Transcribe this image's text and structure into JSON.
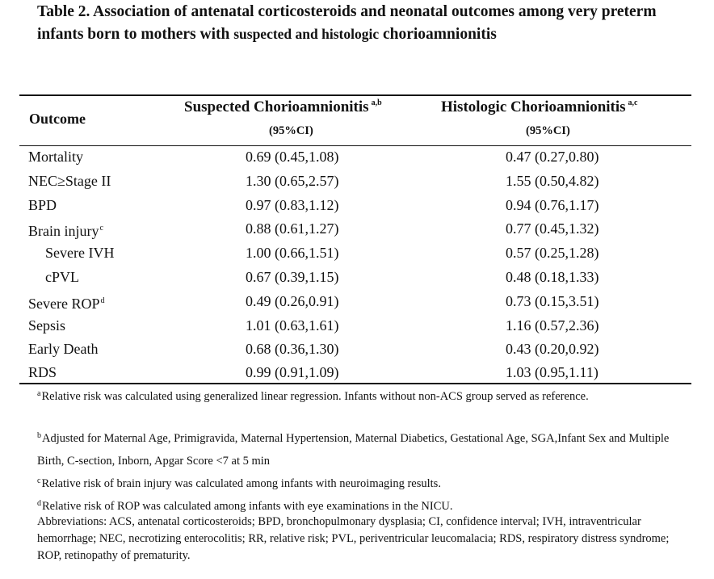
{
  "title": {
    "part1": "Table 2. Association of antenatal corticosteroids and neonatal outcomes among very preterm infants born to mothers with ",
    "part2": "suspected and histologic",
    "part3": " chorioamnionitis"
  },
  "header": {
    "outcome": "Outcome",
    "col1": "Suspected Chorioamnionitis",
    "col1_sup": "a,b",
    "col1_sub": "(95%CI)",
    "col2": "Histologic Chorioamnionitis",
    "col2_sup": "a,c",
    "col2_sub": "(95%CI)"
  },
  "rows": [
    {
      "label": "Mortality",
      "sup": "",
      "v1": "0.69 (0.45,1.08)",
      "v2": "0.47 (0.27,0.80)"
    },
    {
      "label": "NEC≥Stage II",
      "sup": "",
      "v1": "1.30 (0.65,2.57)",
      "v2": "1.55 (0.50,4.82)"
    },
    {
      "label": "BPD",
      "sup": "",
      "v1": "0.97 (0.83,1.12)",
      "v2": "0.94 (0.76,1.17)"
    },
    {
      "label": "Brain injury",
      "sup": "c",
      "v1": "0.88 (0.61,1.27)",
      "v2": "0.77 (0.45,1.32)"
    },
    {
      "label": "Severe IVH",
      "sup": "",
      "v1": "1.00 (0.66,1.51)",
      "v2": "0.57 (0.25,1.28)"
    },
    {
      "label": "cPVL",
      "sup": "",
      "v1": "0.67 (0.39,1.15)",
      "v2": "0.48 (0.18,1.33)"
    },
    {
      "label": "Severe ROP",
      "sup": "d",
      "v1": "0.49 (0.26,0.91)",
      "v2": "0.73 (0.15,3.51)"
    },
    {
      "label": "Sepsis",
      "sup": "",
      "v1": "1.01 (0.63,1.61)",
      "v2": "1.16 (0.57,2.36)"
    },
    {
      "label": "Early Death",
      "sup": "",
      "v1": "0.68 (0.36,1.30)",
      "v2": "0.43 (0.20,0.92)"
    },
    {
      "label": "RDS",
      "sup": "",
      "v1": "0.99 (0.91,1.09)",
      "v2": "1.03 (0.95,1.11)"
    }
  ],
  "footnotes": {
    "a_mark": "a",
    "a": "Relative risk was calculated using generalized linear regression. Infants without non-ACS group served as reference.",
    "b_mark": "b",
    "b": "Adjusted for Maternal Age, Primigravida, Maternal Hypertension, Maternal Diabetics, Gestational Age, SGA,Infant Sex and Multiple Birth, C-section, Inborn, Apgar Score <7 at 5 min",
    "c_mark": "c",
    "c": "Relative risk of brain injury was calculated among infants with neuroimaging results.",
    "d_mark": "d",
    "d": "Relative risk of ROP was calculated among infants with eye examinations in the NICU.",
    "abbrev": "Abbreviations: ACS, antenatal corticosteroids; BPD, bronchopulmonary dysplasia; CI, confidence interval; IVH, intraventricular hemorrhage; NEC, necrotizing enterocolitis; RR, relative risk; PVL, periventricular leucomalacia; RDS, respiratory distress syndrome; ROP, retinopathy of prematurity."
  }
}
